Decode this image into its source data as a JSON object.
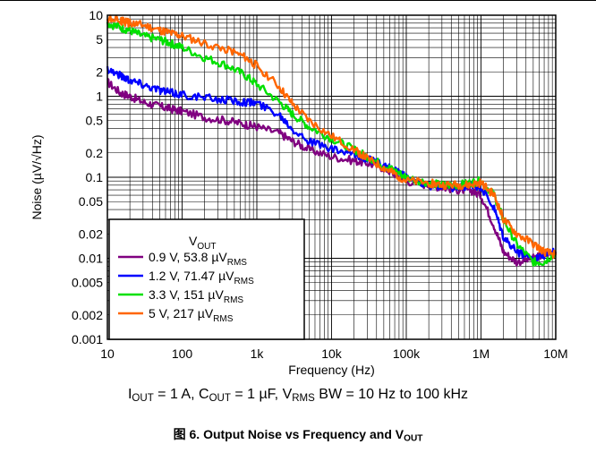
{
  "chart_data": {
    "type": "line",
    "x_scale": "log",
    "y_scale": "log",
    "xlim": [
      10,
      10000000
    ],
    "ylim": [
      0.001,
      10
    ],
    "xlabel": "Frequency (Hz)",
    "ylabel": "Noise (µV/√Hz)",
    "x_ticks": [
      {
        "v": 10,
        "label": "10"
      },
      {
        "v": 100,
        "label": "100"
      },
      {
        "v": 1000,
        "label": "1k"
      },
      {
        "v": 10000,
        "label": "10k"
      },
      {
        "v": 100000,
        "label": "100k"
      },
      {
        "v": 1000000,
        "label": "1M"
      },
      {
        "v": 10000000,
        "label": "10M"
      }
    ],
    "y_ticks": [
      {
        "v": 10,
        "label": "10"
      },
      {
        "v": 5,
        "label": "5"
      },
      {
        "v": 2,
        "label": "2"
      },
      {
        "v": 1,
        "label": "1"
      },
      {
        "v": 0.5,
        "label": "0.5"
      },
      {
        "v": 0.2,
        "label": "0.2"
      },
      {
        "v": 0.1,
        "label": "0.1"
      },
      {
        "v": 0.05,
        "label": "0.05"
      },
      {
        "v": 0.02,
        "label": "0.02"
      },
      {
        "v": 0.01,
        "label": "0.01"
      },
      {
        "v": 0.005,
        "label": "0.005"
      },
      {
        "v": 0.002,
        "label": "0.002"
      },
      {
        "v": 0.001,
        "label": "0.001"
      }
    ],
    "grid": true,
    "legend": {
      "placement": "bottom-left",
      "title": {
        "main": "V",
        "sub": "OUT"
      }
    },
    "series": [
      {
        "name": "0.9 V, 53.8 µVRMS",
        "label_main": "0.9 V, 53.8 µV",
        "label_sub": "RMS",
        "color": "#800080",
        "x": [
          10,
          15,
          20,
          30,
          50,
          70,
          100,
          200,
          400,
          700,
          1000,
          2000,
          3000,
          5000,
          10000,
          20000,
          30000,
          50000,
          70000,
          100000,
          200000,
          300000,
          500000,
          700000,
          1000000,
          1500000,
          2000000,
          3000000,
          5000000,
          7000000,
          10000000
        ],
        "y": [
          1.5,
          1.1,
          1.0,
          0.85,
          0.75,
          0.7,
          0.65,
          0.55,
          0.5,
          0.45,
          0.42,
          0.35,
          0.28,
          0.22,
          0.18,
          0.16,
          0.15,
          0.13,
          0.11,
          0.09,
          0.08,
          0.075,
          0.07,
          0.07,
          0.06,
          0.025,
          0.012,
          0.009,
          0.01,
          0.011,
          0.012
        ]
      },
      {
        "name": "1.2 V, 71.47 µVRMS",
        "label_main": "1.2 V, 71.47 µV",
        "label_sub": "RMS",
        "color": "#0000ff",
        "x": [
          10,
          15,
          20,
          30,
          50,
          70,
          100,
          200,
          400,
          700,
          1000,
          2000,
          3000,
          5000,
          10000,
          20000,
          30000,
          50000,
          70000,
          100000,
          200000,
          300000,
          500000,
          700000,
          1000000,
          1500000,
          2000000,
          3000000,
          5000000,
          7000000,
          10000000
        ],
        "y": [
          2.2,
          1.8,
          1.6,
          1.4,
          1.2,
          1.1,
          1.05,
          0.95,
          0.9,
          0.85,
          0.82,
          0.6,
          0.4,
          0.28,
          0.22,
          0.19,
          0.17,
          0.14,
          0.12,
          0.1,
          0.08,
          0.075,
          0.075,
          0.08,
          0.075,
          0.04,
          0.018,
          0.012,
          0.01,
          0.011,
          0.012
        ]
      },
      {
        "name": "3.3 V, 151 µVRMS",
        "label_main": "3.3 V, 151 µV",
        "label_sub": "RMS",
        "color": "#00e000",
        "x": [
          10,
          15,
          20,
          30,
          50,
          70,
          100,
          200,
          400,
          700,
          1000,
          2000,
          3000,
          5000,
          10000,
          20000,
          30000,
          50000,
          70000,
          100000,
          200000,
          300000,
          500000,
          700000,
          1000000,
          1500000,
          2000000,
          3000000,
          5000000,
          7000000,
          10000000
        ],
        "y": [
          8.0,
          7.0,
          6.5,
          5.5,
          5.0,
          4.5,
          4.0,
          3.0,
          2.4,
          1.8,
          1.4,
          0.85,
          0.6,
          0.42,
          0.3,
          0.22,
          0.18,
          0.14,
          0.12,
          0.1,
          0.085,
          0.08,
          0.08,
          0.085,
          0.09,
          0.06,
          0.03,
          0.015,
          0.009,
          0.009,
          0.012
        ]
      },
      {
        "name": "5 V, 217 µVRMS",
        "label_main": "5 V, 217 µV",
        "label_sub": "RMS",
        "color": "#ff6600",
        "x": [
          10,
          15,
          20,
          30,
          50,
          70,
          100,
          200,
          400,
          700,
          1000,
          2000,
          3000,
          5000,
          10000,
          20000,
          30000,
          50000,
          70000,
          100000,
          200000,
          300000,
          500000,
          700000,
          1000000,
          1500000,
          2000000,
          3000000,
          5000000,
          7000000,
          10000000
        ],
        "y": [
          9.0,
          8.5,
          8.0,
          7.5,
          6.5,
          6.0,
          5.5,
          4.5,
          3.8,
          3.0,
          2.4,
          1.3,
          0.8,
          0.5,
          0.32,
          0.22,
          0.17,
          0.13,
          0.11,
          0.09,
          0.085,
          0.08,
          0.08,
          0.08,
          0.085,
          0.06,
          0.03,
          0.02,
          0.015,
          0.012,
          0.011
        ]
      }
    ]
  },
  "conditions": {
    "i_out_main": "I",
    "i_out_sub": "OUT",
    "i_out_val": " = 1 A, ",
    "c_out_main": "C",
    "c_out_sub": "OUT",
    "c_out_val": " = 1 µF, ",
    "v_rms_main": "V",
    "v_rms_sub": "RMS",
    "v_rms_val": " BW = 10 Hz to 100 kHz"
  },
  "caption": {
    "prefix": "图 6. Output Noise vs Frequency and V",
    "sub": "OUT"
  }
}
